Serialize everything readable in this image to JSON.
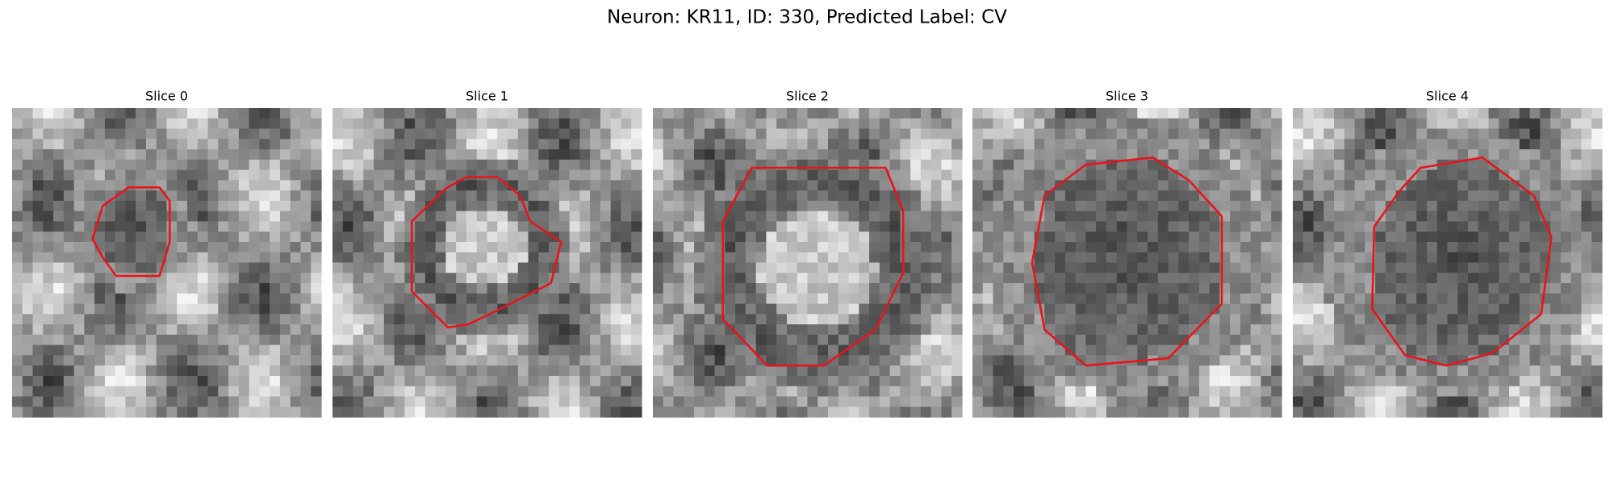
{
  "title": "Neuron: KR11, ID: 330, Predicted Label: CV",
  "panels": [
    {
      "title": "Slice 0"
    },
    {
      "title": "Slice 1"
    },
    {
      "title": "Slice 2"
    },
    {
      "title": "Slice 3"
    },
    {
      "title": "Slice 4"
    }
  ]
}
